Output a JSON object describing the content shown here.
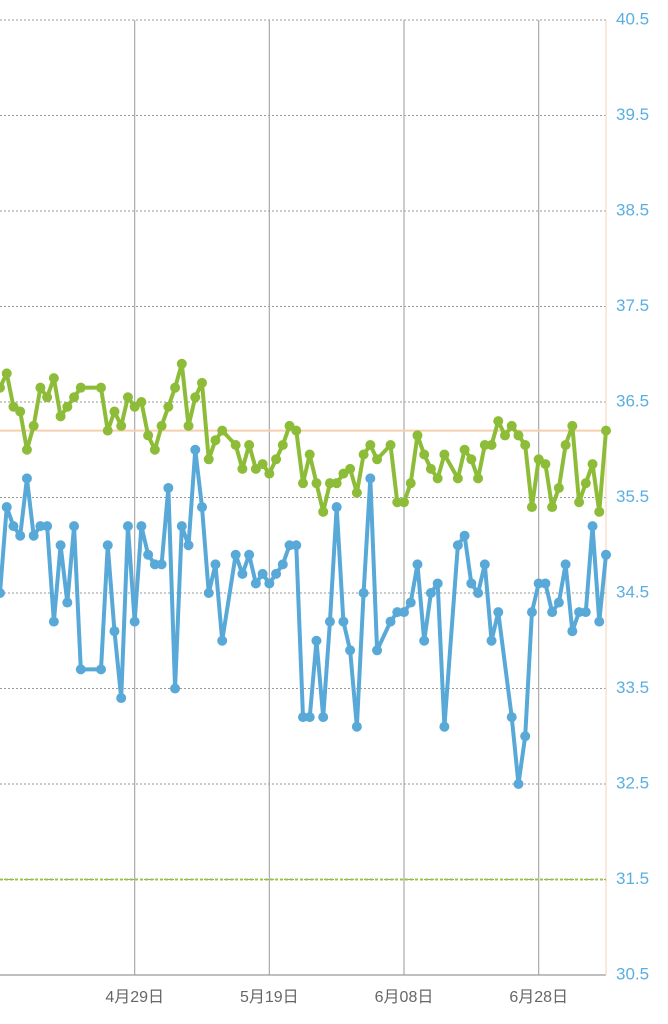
{
  "chart_data": {
    "type": "line",
    "xlim": [
      0,
      90
    ],
    "xticks": [
      {
        "value": 20,
        "label": "4月29日"
      },
      {
        "value": 40,
        "label": "5月19日"
      },
      {
        "value": 60,
        "label": "6月08日"
      },
      {
        "value": 80,
        "label": "6月28日"
      }
    ],
    "ylim": [
      30.5,
      40.5
    ],
    "yticks": [
      30.5,
      31.5,
      32.5,
      33.5,
      34.5,
      35.5,
      36.5,
      37.5,
      38.5,
      39.5,
      40.5
    ],
    "grid": true,
    "reference_lines": [
      {
        "value": 36.2,
        "color": "#f6cfb0"
      },
      {
        "value": 31.5,
        "color": "#9cc444"
      }
    ],
    "series": [
      {
        "color": "#8dbd38",
        "x": [
          0,
          1,
          2,
          3,
          4,
          5,
          6,
          7,
          8,
          9,
          10,
          11,
          12,
          15,
          16,
          17,
          18,
          19,
          20,
          21,
          22,
          23,
          24,
          25,
          26,
          27,
          28,
          29,
          30,
          31,
          32,
          33,
          35,
          36,
          37,
          38,
          39,
          40,
          41,
          42,
          43,
          44,
          45,
          46,
          47,
          48,
          49,
          50,
          51,
          52,
          53,
          54,
          55,
          56,
          58,
          59,
          60,
          61,
          62,
          63,
          64,
          65,
          66,
          68,
          69,
          70,
          71,
          72,
          73,
          74,
          75,
          76,
          77,
          78,
          79,
          80,
          81,
          82,
          83,
          84,
          85,
          86,
          87,
          88,
          89,
          90
        ],
        "values": [
          36.65,
          36.8,
          36.45,
          36.4,
          36.0,
          36.25,
          36.65,
          36.55,
          36.75,
          36.35,
          36.45,
          36.55,
          36.65,
          36.65,
          36.2,
          36.4,
          36.25,
          36.55,
          36.45,
          36.5,
          36.15,
          36.0,
          36.25,
          36.45,
          36.65,
          36.9,
          36.25,
          36.55,
          36.7,
          35.9,
          36.1,
          36.2,
          36.05,
          35.8,
          36.05,
          35.8,
          35.85,
          35.75,
          35.9,
          36.05,
          36.25,
          36.2,
          35.65,
          35.95,
          35.65,
          35.35,
          35.65,
          35.65,
          35.75,
          35.8,
          35.55,
          35.95,
          36.05,
          35.9,
          36.05,
          35.45,
          35.45,
          35.65,
          36.15,
          35.95,
          35.8,
          35.7,
          35.95,
          35.7,
          36.0,
          35.9,
          35.7,
          36.05,
          36.05,
          36.3,
          36.15,
          36.25,
          36.15,
          36.05,
          35.4,
          35.9,
          35.85,
          35.4,
          35.6,
          36.05,
          36.25,
          35.45,
          35.65,
          35.85,
          35.35,
          36.2
        ]
      },
      {
        "color": "#58a9d8",
        "x": [
          0,
          1,
          2,
          3,
          4,
          5,
          6,
          7,
          8,
          9,
          10,
          11,
          12,
          15,
          16,
          17,
          18,
          19,
          20,
          21,
          22,
          23,
          24,
          25,
          26,
          27,
          28,
          29,
          30,
          31,
          32,
          33,
          35,
          36,
          37,
          38,
          39,
          40,
          41,
          42,
          43,
          44,
          45,
          46,
          47,
          48,
          49,
          50,
          51,
          52,
          53,
          54,
          55,
          56,
          58,
          59,
          60,
          61,
          62,
          63,
          64,
          65,
          66,
          68,
          69,
          70,
          71,
          72,
          73,
          74,
          76,
          77,
          78,
          79,
          80,
          81,
          82,
          83,
          84,
          85,
          86,
          87,
          88,
          89,
          90
        ],
        "values": [
          34.5,
          35.4,
          35.2,
          35.1,
          35.7,
          35.1,
          35.2,
          35.2,
          34.2,
          35.0,
          34.4,
          35.2,
          33.7,
          33.7,
          35.0,
          34.1,
          33.4,
          35.2,
          34.2,
          35.2,
          34.9,
          34.8,
          34.8,
          35.6,
          33.5,
          35.2,
          35.0,
          36.0,
          35.4,
          34.5,
          34.8,
          34.0,
          34.9,
          34.7,
          34.9,
          34.6,
          34.7,
          34.6,
          34.7,
          34.8,
          35.0,
          35.0,
          33.2,
          33.2,
          34.0,
          33.2,
          34.2,
          35.4,
          34.2,
          33.9,
          33.1,
          34.5,
          35.7,
          33.9,
          34.2,
          34.3,
          34.3,
          34.4,
          34.8,
          34.0,
          34.5,
          34.6,
          33.1,
          35.0,
          35.1,
          34.6,
          34.5,
          34.8,
          34.0,
          34.3,
          33.2,
          32.5,
          33.0,
          34.3,
          34.6,
          34.6,
          34.3,
          34.4,
          34.8,
          34.1,
          34.3,
          34.3,
          35.2,
          34.2,
          34.9
        ]
      }
    ]
  }
}
